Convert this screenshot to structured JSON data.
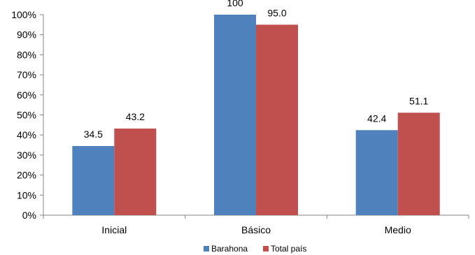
{
  "chart_data": {
    "type": "bar",
    "categories": [
      "Inicial",
      "Básico",
      "Medio"
    ],
    "series": [
      {
        "name": "Barahona",
        "values": [
          34.5,
          100,
          42.4
        ],
        "labels": [
          "34.5",
          "100",
          "42.4"
        ],
        "color": "#4F81BD"
      },
      {
        "name": "Total país",
        "values": [
          43.2,
          95.0,
          51.1
        ],
        "labels": [
          "43.2",
          "95.0",
          "51.1"
        ],
        "color": "#C0504D"
      }
    ],
    "ylim": [
      0,
      100
    ],
    "yticks": [
      "0%",
      "10%",
      "20%",
      "30%",
      "40%",
      "50%",
      "60%",
      "70%",
      "80%",
      "90%",
      "100%"
    ],
    "grid": false,
    "legend_position": "bottom"
  }
}
